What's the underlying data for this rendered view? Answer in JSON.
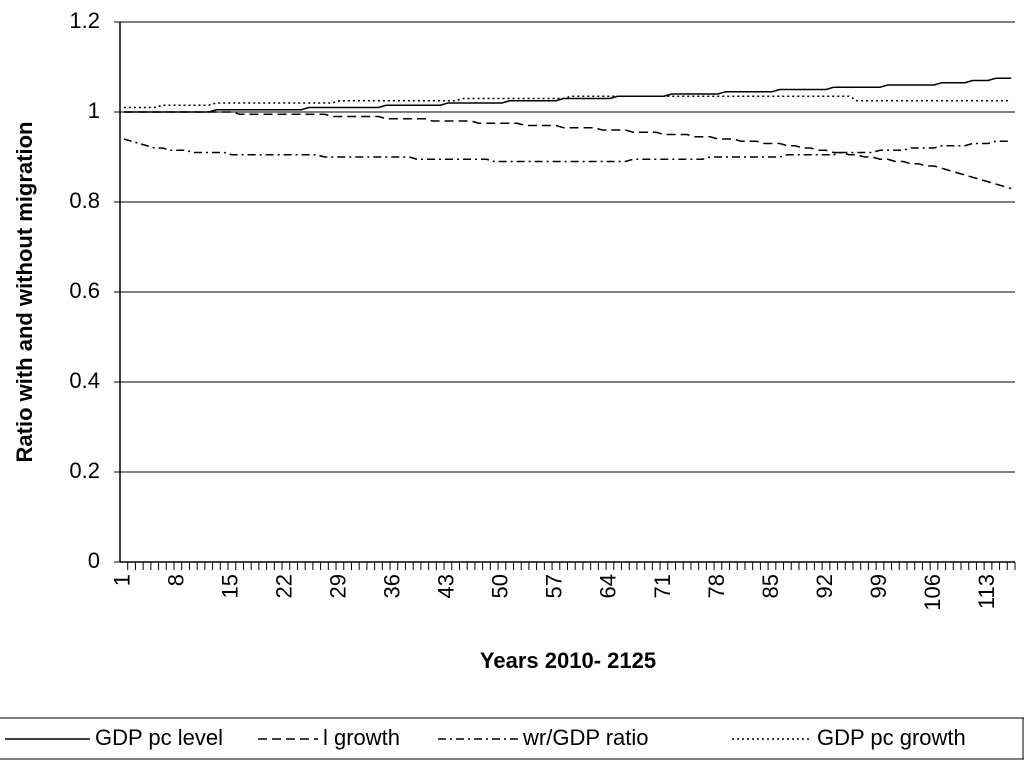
{
  "chart_data": {
    "type": "line",
    "y_label": "Ratio with and without migration",
    "x_label": "Years 2010- 2125",
    "ylim": [
      0,
      1.2
    ],
    "yticks": [
      0,
      0.2,
      0.4,
      0.6,
      0.8,
      1,
      1.2
    ],
    "grid": true,
    "legend": "bottom",
    "categories": [
      1,
      null,
      null,
      null,
      null,
      null,
      null,
      8,
      null,
      null,
      null,
      null,
      null,
      null,
      15,
      null,
      null,
      null,
      null,
      null,
      null,
      22,
      null,
      null,
      null,
      null,
      null,
      null,
      29,
      null,
      null,
      null,
      null,
      null,
      null,
      36,
      null,
      null,
      null,
      null,
      null,
      null,
      43,
      null,
      null,
      null,
      null,
      null,
      null,
      50,
      null,
      null,
      null,
      null,
      null,
      null,
      57,
      null,
      null,
      null,
      null,
      null,
      null,
      64,
      null,
      null,
      null,
      null,
      null,
      null,
      71,
      null,
      null,
      null,
      null,
      null,
      null,
      78,
      null,
      null,
      null,
      null,
      null,
      null,
      85,
      null,
      null,
      null,
      null,
      null,
      null,
      92,
      null,
      null,
      null,
      null,
      null,
      null,
      99,
      null,
      null,
      null,
      null,
      null,
      null,
      106,
      null,
      null,
      null,
      null,
      null,
      null,
      113,
      null,
      null,
      null
    ],
    "series": [
      {
        "name": "GDP pc level",
        "color": "#000000",
        "style": "solid",
        "values": [
          1.0,
          1.0,
          1.0,
          1.0,
          1.0,
          1.0,
          1.0,
          1.0,
          1.0,
          1.0,
          1.0,
          1.0,
          1.005,
          1.005,
          1.005,
          1.005,
          1.005,
          1.005,
          1.005,
          1.005,
          1.005,
          1.005,
          1.005,
          1.005,
          1.01,
          1.01,
          1.01,
          1.01,
          1.01,
          1.01,
          1.01,
          1.01,
          1.01,
          1.01,
          1.015,
          1.015,
          1.015,
          1.015,
          1.015,
          1.015,
          1.015,
          1.015,
          1.02,
          1.02,
          1.02,
          1.02,
          1.02,
          1.02,
          1.02,
          1.02,
          1.025,
          1.025,
          1.025,
          1.025,
          1.025,
          1.025,
          1.025,
          1.03,
          1.03,
          1.03,
          1.03,
          1.03,
          1.03,
          1.03,
          1.035,
          1.035,
          1.035,
          1.035,
          1.035,
          1.035,
          1.035,
          1.04,
          1.04,
          1.04,
          1.04,
          1.04,
          1.04,
          1.04,
          1.045,
          1.045,
          1.045,
          1.045,
          1.045,
          1.045,
          1.045,
          1.05,
          1.05,
          1.05,
          1.05,
          1.05,
          1.05,
          1.05,
          1.055,
          1.055,
          1.055,
          1.055,
          1.055,
          1.055,
          1.055,
          1.06,
          1.06,
          1.06,
          1.06,
          1.06,
          1.06,
          1.06,
          1.065,
          1.065,
          1.065,
          1.065,
          1.07,
          1.07,
          1.07,
          1.075,
          1.075,
          1.075
        ]
      },
      {
        "name": "l growth",
        "color": "#000000",
        "style": "dashed",
        "values": [
          1.0,
          1.0,
          1.0,
          1.0,
          1.0,
          1.0,
          1.0,
          1.0,
          1.0,
          1.0,
          1.0,
          1.0,
          1.0,
          1.0,
          1.0,
          0.995,
          0.995,
          0.995,
          0.995,
          0.995,
          0.995,
          0.995,
          0.995,
          0.995,
          0.995,
          0.995,
          0.995,
          0.99,
          0.99,
          0.99,
          0.99,
          0.99,
          0.99,
          0.99,
          0.985,
          0.985,
          0.985,
          0.985,
          0.985,
          0.985,
          0.98,
          0.98,
          0.98,
          0.98,
          0.98,
          0.98,
          0.975,
          0.975,
          0.975,
          0.975,
          0.975,
          0.975,
          0.97,
          0.97,
          0.97,
          0.97,
          0.97,
          0.965,
          0.965,
          0.965,
          0.965,
          0.965,
          0.96,
          0.96,
          0.96,
          0.96,
          0.955,
          0.955,
          0.955,
          0.955,
          0.95,
          0.95,
          0.95,
          0.95,
          0.945,
          0.945,
          0.945,
          0.94,
          0.94,
          0.94,
          0.935,
          0.935,
          0.935,
          0.93,
          0.93,
          0.93,
          0.925,
          0.925,
          0.92,
          0.92,
          0.915,
          0.915,
          0.91,
          0.91,
          0.905,
          0.905,
          0.9,
          0.9,
          0.895,
          0.895,
          0.89,
          0.89,
          0.885,
          0.885,
          0.88,
          0.88,
          0.875,
          0.87,
          0.865,
          0.86,
          0.855,
          0.85,
          0.845,
          0.84,
          0.835,
          0.83
        ]
      },
      {
        "name": "wr/GDP ratio",
        "color": "#000000",
        "style": "dashdot",
        "values": [
          0.94,
          0.935,
          0.93,
          0.925,
          0.92,
          0.92,
          0.915,
          0.915,
          0.915,
          0.91,
          0.91,
          0.91,
          0.91,
          0.91,
          0.905,
          0.905,
          0.905,
          0.905,
          0.905,
          0.905,
          0.905,
          0.905,
          0.905,
          0.905,
          0.905,
          0.905,
          0.9,
          0.9,
          0.9,
          0.9,
          0.9,
          0.9,
          0.9,
          0.9,
          0.9,
          0.9,
          0.9,
          0.9,
          0.895,
          0.895,
          0.895,
          0.895,
          0.895,
          0.895,
          0.895,
          0.895,
          0.895,
          0.895,
          0.89,
          0.89,
          0.89,
          0.89,
          0.89,
          0.89,
          0.89,
          0.89,
          0.89,
          0.89,
          0.89,
          0.89,
          0.89,
          0.89,
          0.89,
          0.89,
          0.89,
          0.89,
          0.895,
          0.895,
          0.895,
          0.895,
          0.895,
          0.895,
          0.895,
          0.895,
          0.895,
          0.895,
          0.9,
          0.9,
          0.9,
          0.9,
          0.9,
          0.9,
          0.9,
          0.9,
          0.9,
          0.9,
          0.905,
          0.905,
          0.905,
          0.905,
          0.905,
          0.905,
          0.905,
          0.91,
          0.91,
          0.91,
          0.91,
          0.91,
          0.915,
          0.915,
          0.915,
          0.915,
          0.92,
          0.92,
          0.92,
          0.92,
          0.925,
          0.925,
          0.925,
          0.925,
          0.93,
          0.93,
          0.93,
          0.935,
          0.935,
          0.935
        ]
      },
      {
        "name": "GDP pc growth",
        "color": "#000000",
        "style": "dotted",
        "values": [
          1.01,
          1.01,
          1.01,
          1.01,
          1.01,
          1.015,
          1.015,
          1.015,
          1.015,
          1.015,
          1.015,
          1.015,
          1.02,
          1.02,
          1.02,
          1.02,
          1.02,
          1.02,
          1.02,
          1.02,
          1.02,
          1.02,
          1.02,
          1.02,
          1.02,
          1.02,
          1.02,
          1.02,
          1.025,
          1.025,
          1.025,
          1.025,
          1.025,
          1.025,
          1.025,
          1.025,
          1.025,
          1.025,
          1.025,
          1.025,
          1.025,
          1.025,
          1.025,
          1.025,
          1.03,
          1.03,
          1.03,
          1.03,
          1.03,
          1.03,
          1.03,
          1.03,
          1.03,
          1.03,
          1.03,
          1.03,
          1.03,
          1.03,
          1.035,
          1.035,
          1.035,
          1.035,
          1.035,
          1.035,
          1.035,
          1.035,
          1.035,
          1.035,
          1.035,
          1.035,
          1.035,
          1.035,
          1.035,
          1.035,
          1.035,
          1.035,
          1.035,
          1.035,
          1.035,
          1.035,
          1.035,
          1.035,
          1.035,
          1.035,
          1.035,
          1.035,
          1.035,
          1.035,
          1.035,
          1.035,
          1.035,
          1.035,
          1.035,
          1.035,
          1.035,
          1.025,
          1.025,
          1.025,
          1.025,
          1.025,
          1.025,
          1.025,
          1.025,
          1.025,
          1.025,
          1.025,
          1.025,
          1.025,
          1.025,
          1.025,
          1.025,
          1.025,
          1.025,
          1.025,
          1.025,
          1.025
        ]
      }
    ]
  }
}
